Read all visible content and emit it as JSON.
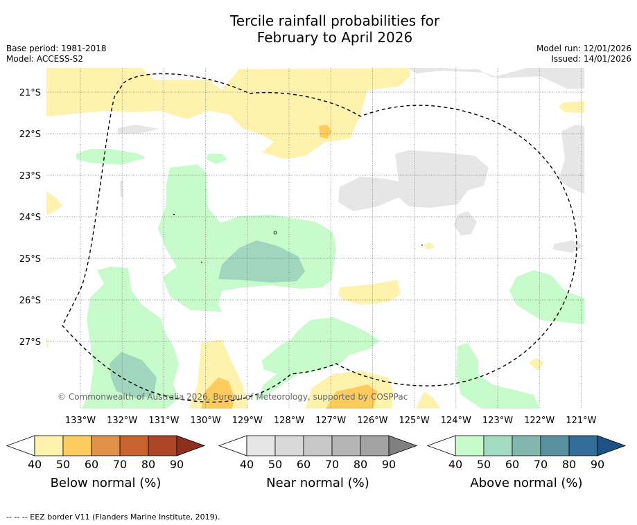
{
  "title": {
    "line1": "Tercile rainfall probabilities for",
    "line2": "February to April 2026"
  },
  "meta": {
    "base_period": "Base period: 1981-2018",
    "model": "Model: ACCESS-S2",
    "model_run": "Model run: 12/01/2026",
    "issued": "Issued: 14/01/2026"
  },
  "map": {
    "copyright": "© Commonwealth of Australia 2026, Bureau of Meteorology, supported by COSPPac",
    "lat_labels": [
      "21°S",
      "22°S",
      "23°S",
      "24°S",
      "25°S",
      "26°S",
      "27°S"
    ],
    "lon_labels": [
      "133°W",
      "132°W",
      "131°W",
      "130°W",
      "129°W",
      "128°W",
      "127°W",
      "126°W",
      "125°W",
      "124°W",
      "123°W",
      "122°W",
      "121°W"
    ],
    "colors": {
      "below_40": "#fff2ad",
      "below_50": "#fecc5c",
      "near_40": "#e6e6e6",
      "above_40": "#c7fbcb",
      "above_50": "#9fd6bd",
      "border": "#000000"
    }
  },
  "legends": [
    {
      "name": "below",
      "title": "Below normal (%)",
      "ticks": [
        "40",
        "50",
        "60",
        "70",
        "80",
        "90"
      ],
      "colors": [
        "#fff2ad",
        "#fecc5c",
        "#e0914a",
        "#c8622e",
        "#ac4526",
        "#8b2f1e"
      ]
    },
    {
      "name": "near",
      "title": "Near normal (%)",
      "ticks": [
        "40",
        "50",
        "60",
        "70",
        "80",
        "90"
      ],
      "colors": [
        "#e6e6e6",
        "#d8d8d8",
        "#c8c8c8",
        "#b5b5b5",
        "#a2a2a2",
        "#808080"
      ]
    },
    {
      "name": "above",
      "title": "Above normal (%)",
      "ticks": [
        "40",
        "50",
        "60",
        "70",
        "80",
        "90"
      ],
      "colors": [
        "#c7fbcb",
        "#a3dcc0",
        "#84b6b0",
        "#5a8fa0",
        "#336b99",
        "#1d5287"
      ]
    }
  ],
  "footer": "-- -- -- EEZ border V11 (Flanders Marine Institute, 2019)."
}
